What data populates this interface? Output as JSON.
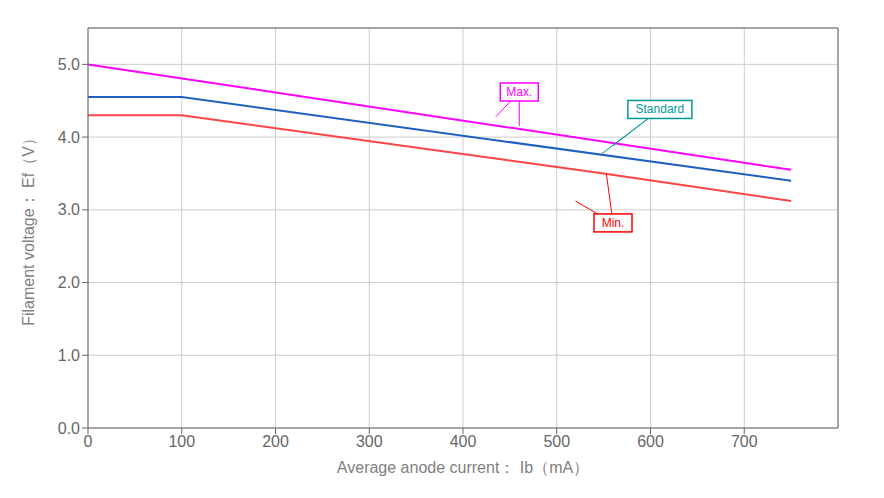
{
  "chart_data": {
    "type": "line",
    "xlabel": "Average anode current： Ib（mA）",
    "ylabel": "Filament voltage： Ef（V）",
    "xlim": [
      0,
      800
    ],
    "ylim": [
      0.0,
      5.5
    ],
    "xticks": [
      0,
      100,
      200,
      300,
      400,
      500,
      600,
      700
    ],
    "yticks": [
      {
        "value": 0.0,
        "label": "0.0"
      },
      {
        "value": 1.0,
        "label": "1.0"
      },
      {
        "value": 2.0,
        "label": "2.0"
      },
      {
        "value": 3.0,
        "label": "3.0"
      },
      {
        "value": 4.0,
        "label": "4.0"
      },
      {
        "value": 5.0,
        "label": "5.0"
      }
    ],
    "grid": true,
    "series": [
      {
        "x": [
          0,
          750
        ],
        "values": [
          5.0,
          3.55
        ],
        "color": "#FF00FF"
      },
      {
        "x": [
          0,
          100,
          750
        ],
        "values": [
          4.55,
          4.55,
          3.4
        ],
        "color": "#1F5FBF"
      },
      {
        "x": [
          0,
          100,
          550,
          750
        ],
        "values": [
          4.3,
          4.3,
          3.5,
          3.12
        ],
        "color": "#FF4444"
      }
    ],
    "annotations": [
      {
        "text": "Max.",
        "color": "#FF00FF",
        "xytext": [
          460,
          4.62
        ],
        "xy": [
          [
            435,
            4.28
          ],
          [
            460,
            4.15
          ]
        ]
      },
      {
        "text": "Standard",
        "color": "#009999",
        "xytext": [
          610,
          4.38
        ],
        "xy": [
          [
            560,
            3.88
          ],
          [
            548,
            3.77
          ]
        ]
      },
      {
        "text": "Min.",
        "color": "#FF0000",
        "xytext": [
          560,
          2.82
        ],
        "xy": [
          [
            553,
            3.49
          ],
          [
            520,
            3.12
          ]
        ]
      }
    ]
  }
}
